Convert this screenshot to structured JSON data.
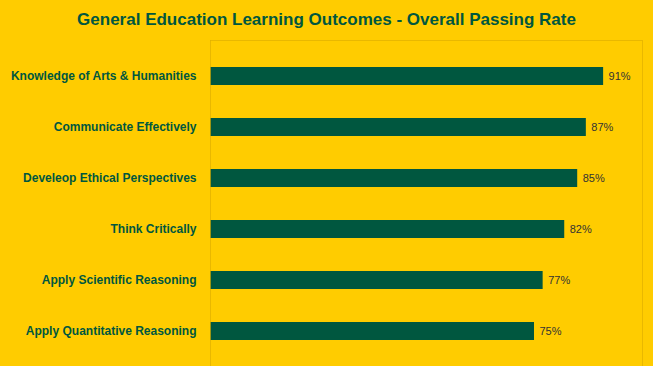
{
  "chart_data": {
    "type": "bar",
    "title": "General Education Learning Outcomes - Overall Passing Rate",
    "orientation": "horizontal",
    "categories": [
      "Knowledge of Arts & Humanities",
      "Communicate Effectively",
      "Develeop Ethical Perspectives",
      "Think Critically",
      "Apply Scientific Reasoning",
      "Apply Quantitative Reasoning"
    ],
    "values": [
      91,
      87,
      85,
      82,
      77,
      75
    ],
    "value_labels": [
      "91%",
      "87%",
      "85%",
      "82%",
      "77%",
      "75%"
    ],
    "color": "#00573F",
    "xlim": [
      0,
      100
    ],
    "grid": false,
    "data_labels": true,
    "tick_labels": "y"
  }
}
